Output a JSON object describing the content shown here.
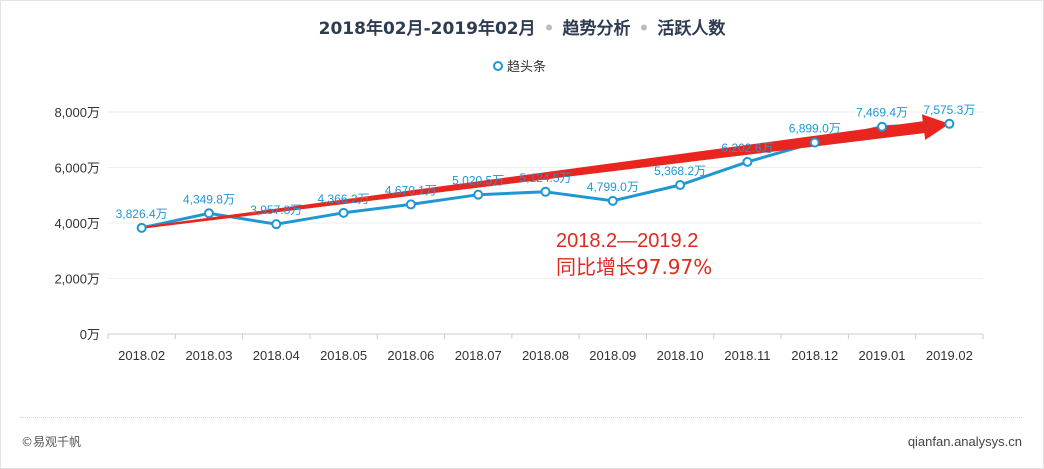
{
  "title": {
    "period": "2018年02月-2019年02月",
    "section": "趋势分析",
    "metric": "活跃人数"
  },
  "legend": {
    "series_label": "趋头条"
  },
  "annotation": {
    "line1": "2018.2—2019.2",
    "line2": "同比增长97.97%"
  },
  "footer": {
    "copyright": "©易观千帆",
    "site": "qianfan.analysys.cn"
  },
  "colors": {
    "series": "#1f97d3",
    "arrow": "#e8261f",
    "annotation": "#e02a20",
    "title": "#2f3b52"
  },
  "chart_data": {
    "type": "line",
    "title": "2018年02月-2019年02月 · 趋势分析 · 活跃人数",
    "categories": [
      "2018.02",
      "2018.03",
      "2018.04",
      "2018.05",
      "2018.06",
      "2018.07",
      "2018.08",
      "2018.09",
      "2018.10",
      "2018.11",
      "2018.12",
      "2019.01",
      "2019.02"
    ],
    "series": [
      {
        "name": "趋头条",
        "values": [
          3826.4,
          4349.8,
          3957.8,
          4366.2,
          4670.1,
          5020.5,
          5124.5,
          4799.0,
          5368.2,
          6202.6,
          6899.0,
          7469.4,
          7575.3
        ],
        "labels": [
          "3,826.4万",
          "4,349.8万",
          "3,957.8万",
          "4,366.2万",
          "4,670.1万",
          "5,020.5万",
          "5,124.5万",
          "4,799.0万",
          "5,368.2万",
          "6,202.6万",
          "6,899.0万",
          "7,469.4万",
          "7,575.3万"
        ]
      }
    ],
    "yticks": [
      "0万",
      "2,000万",
      "4,000万",
      "6,000万",
      "8,000万"
    ],
    "ytick_values": [
      0,
      2000,
      4000,
      6000,
      8000
    ],
    "ylim": [
      0,
      8000
    ],
    "xlabel": "",
    "ylabel": "",
    "grid": true,
    "legend_position": "top-center",
    "trend_arrow": {
      "from": "2018.02",
      "to": "2019.02"
    }
  }
}
